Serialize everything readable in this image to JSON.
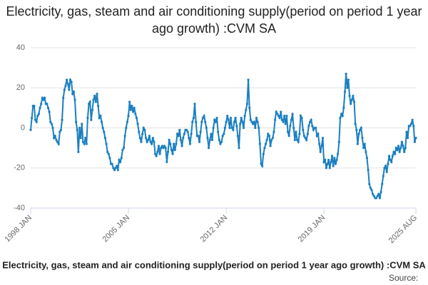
{
  "chart_data": {
    "type": "line",
    "title": "Electricity, gas, steam and air conditioning supply(period on period 1 year ago growth) :CVM SA",
    "x_label": "Electricity, gas, steam and air conditioning supply(period on period 1 year ago growth) :CVM SA",
    "source": "Source:",
    "color": "#1a7fc1",
    "grid": true,
    "ylim": [
      -40,
      40
    ],
    "yticks": [
      -40,
      -20,
      0,
      20,
      40
    ],
    "categories": [
      "1998 JAN",
      null,
      null,
      null,
      null,
      null,
      null,
      null,
      null,
      null,
      null,
      null,
      null,
      null,
      null,
      null,
      null,
      null,
      null,
      null,
      null,
      null,
      null,
      null,
      null,
      null,
      null,
      null,
      null,
      null,
      null,
      null,
      null,
      null,
      null,
      null,
      null,
      null,
      null,
      null,
      null,
      null,
      null,
      null,
      null,
      null,
      null,
      null,
      null,
      null,
      null,
      null,
      null,
      null,
      null,
      null,
      null,
      null,
      null,
      null,
      null,
      null,
      null,
      null,
      null,
      null,
      null,
      null,
      null,
      null,
      null,
      null,
      null,
      null,
      null,
      null,
      null,
      null,
      null,
      null,
      null,
      null,
      null,
      null,
      "2005 JAN",
      null,
      null,
      null,
      null,
      null,
      null,
      null,
      null,
      null,
      null,
      null,
      null,
      null,
      null,
      null,
      null,
      null,
      null,
      null,
      null,
      null,
      null,
      null,
      null,
      null,
      null,
      null,
      null,
      null,
      null,
      null,
      null,
      null,
      null,
      null,
      null,
      null,
      null,
      null,
      null,
      null,
      null,
      null,
      null,
      null,
      null,
      null,
      null,
      null,
      null,
      null,
      null,
      null,
      null,
      null,
      null,
      null,
      null,
      null,
      null,
      null,
      null,
      null,
      null,
      null,
      null,
      null,
      null,
      null,
      null,
      null,
      null,
      null,
      null,
      null,
      null,
      null,
      null,
      null,
      null,
      null,
      null,
      null,
      "2012 JAN",
      null,
      null,
      null,
      null,
      null,
      null,
      null,
      null,
      null,
      null,
      null,
      null,
      null,
      null,
      null,
      null,
      null,
      null,
      null,
      null,
      null,
      null,
      null,
      null,
      null,
      null,
      null,
      null,
      null,
      null,
      null,
      null,
      null,
      null,
      null,
      null,
      null,
      null,
      null,
      null,
      null,
      null,
      null,
      null,
      null,
      null,
      null,
      null,
      null,
      null,
      null,
      null,
      null,
      null,
      null,
      null,
      null,
      null,
      null,
      null,
      null,
      null,
      null,
      null,
      null,
      null,
      null,
      null,
      null,
      null,
      null,
      null,
      null,
      null,
      null,
      null,
      null,
      null,
      null,
      null,
      null,
      null,
      null,
      "2019 JAN",
      null,
      null,
      null,
      null,
      null,
      null,
      null,
      null,
      null,
      null,
      null,
      null,
      null,
      null,
      null,
      null,
      null,
      null,
      null,
      null,
      null,
      null,
      null,
      null,
      null,
      null,
      null,
      null,
      null,
      null,
      null,
      null,
      null,
      null,
      null,
      null,
      null,
      null,
      null,
      null,
      null,
      null,
      null,
      null,
      null,
      null,
      null,
      null,
      null,
      null,
      null,
      null,
      null,
      null,
      null,
      null,
      null,
      null,
      null,
      null,
      null,
      null,
      null,
      null,
      null,
      null,
      null,
      null,
      null,
      null,
      null,
      null,
      null,
      null,
      null,
      null,
      null,
      null,
      "2025 AUG"
    ],
    "values": [
      -1,
      5,
      11,
      11,
      4,
      3,
      6,
      7,
      10,
      12,
      15,
      14,
      15,
      12,
      12,
      10,
      8,
      3,
      2,
      0,
      -5,
      -4,
      -6,
      -7,
      -8,
      -2,
      -1,
      4,
      15,
      19,
      21,
      24,
      22,
      19,
      24,
      23,
      17,
      18,
      14,
      3,
      -1,
      -12,
      0,
      -5,
      2,
      -7,
      -8,
      -5,
      -8,
      5,
      12,
      13,
      4,
      9,
      14,
      16,
      13,
      17,
      11,
      5,
      6,
      3,
      0,
      -2,
      -5,
      -8,
      -12,
      -13,
      -15,
      -18,
      -18,
      -20,
      -21,
      -20,
      -19,
      -21,
      -16,
      -17,
      -15,
      -11,
      -10,
      -4,
      0,
      3,
      6,
      13,
      9,
      11,
      8,
      10,
      7,
      5,
      2,
      -2,
      -5,
      -7,
      -3,
      0,
      -1,
      -5,
      -7,
      -6,
      -4,
      -7,
      -8,
      -5,
      -7,
      -13,
      -14,
      -12,
      -9,
      -13,
      -10,
      -9,
      -10,
      -9,
      -10,
      -17,
      -12,
      -6,
      -8,
      -11,
      -13,
      -8,
      -11,
      -8,
      -3,
      -4,
      -1,
      -6,
      -9,
      -5,
      -3,
      -1,
      -1,
      -2,
      -5,
      -8,
      -3,
      3,
      5,
      12,
      3,
      -4,
      -4,
      -7,
      -2,
      3,
      5,
      6,
      3,
      0,
      -5,
      -10,
      -6,
      -3,
      -6,
      0,
      4,
      3,
      5,
      -2,
      -6,
      -8,
      -7,
      -4,
      -3,
      0,
      3,
      6,
      4,
      0,
      5,
      0,
      -1,
      3,
      5,
      1,
      -4,
      -10,
      2,
      5,
      3,
      0,
      6,
      9,
      12,
      24,
      10,
      4,
      3,
      2,
      3,
      0,
      5,
      3,
      0,
      -8,
      -18,
      -19,
      -13,
      -10,
      -8,
      -6,
      -3,
      -4,
      -9,
      -6,
      -5,
      -2,
      4,
      8,
      7,
      6,
      5,
      8,
      4,
      3,
      6,
      2,
      6,
      -2,
      -4,
      1,
      4,
      7,
      0,
      -6,
      -2,
      -6,
      -7,
      -3,
      6,
      5,
      -1,
      -4,
      -5,
      -6,
      -3,
      1,
      3,
      4,
      1,
      -1,
      0,
      0,
      -4,
      -3,
      -8,
      -12,
      -9,
      -5,
      -17,
      -16,
      -20,
      -18,
      -16,
      -20,
      -17,
      -14,
      -19,
      -15,
      -18,
      -16,
      -13,
      -7,
      5,
      7,
      6,
      10,
      18,
      27,
      20,
      24,
      16,
      12,
      14,
      16,
      13,
      2,
      -1,
      -8,
      -3,
      -1,
      0,
      -5,
      -10,
      -8,
      -12,
      -15,
      -21,
      -28,
      -30,
      -31,
      -33,
      -34,
      -35,
      -35,
      -34,
      -33,
      -35,
      -32,
      -28,
      -24,
      -20,
      -19,
      -22,
      -18,
      -14,
      -16,
      -17,
      -14,
      -12,
      -13,
      -10,
      -11,
      -9,
      -12,
      -10,
      -7,
      -9,
      -12,
      -10,
      -2,
      -5,
      1,
      1,
      2,
      4,
      1,
      -7,
      -5
    ]
  }
}
